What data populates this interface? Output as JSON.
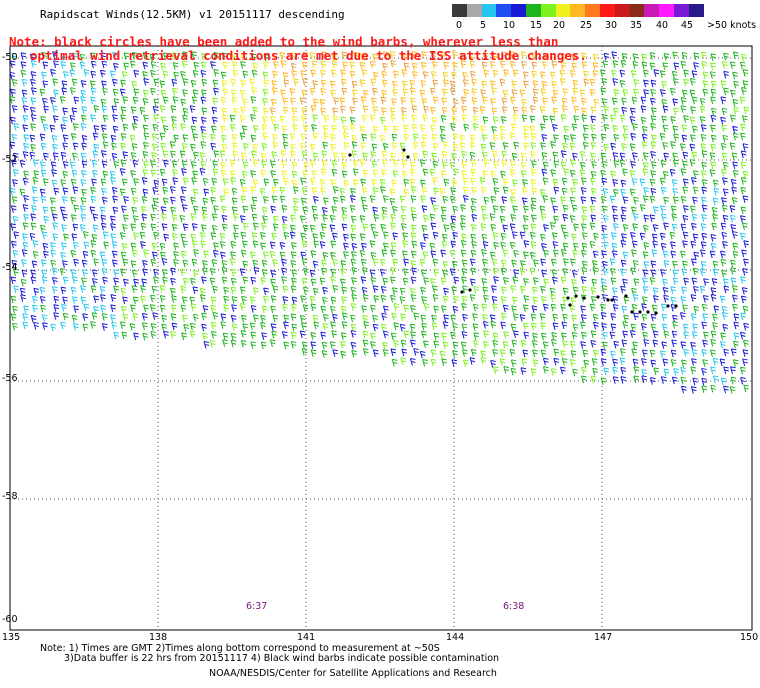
{
  "title": "Rapidscat Winds(12.5KM) v1 20151117 descending",
  "note_lines": [
    "Note: black circles have been added to the wind barbs, wherever less than",
    "optimal wind retrieval conditions are met due to the ISS attitude changes."
  ],
  "colorbar": {
    "colors": [
      "#3a3a3a",
      "#a8a8a8",
      "#26c6f0",
      "#1f4ff0",
      "#1a1ad6",
      "#1fb31f",
      "#7df21f",
      "#f0f01f",
      "#ffb81f",
      "#ff7a1f",
      "#ff1a1a",
      "#c81a1a",
      "#8a2a1a",
      "#c81ab4",
      "#ff1aff",
      "#7a1ad6",
      "#2a1a8a"
    ],
    "labels": [
      "0",
      "5",
      "10",
      "15",
      "20",
      "25",
      "30",
      "35",
      "40",
      "45",
      ">50 knots"
    ]
  },
  "map": {
    "lat_labels": [
      "-50",
      "-52",
      "-54",
      "-56",
      "-58",
      "-60"
    ],
    "lon_labels": [
      "135",
      "138",
      "141",
      "144",
      "147",
      "150"
    ],
    "time_labels": [
      "6:37",
      "6:38"
    ]
  },
  "footer": {
    "line1": "Note: 1) Times are GMT 2)Times along bottom correspond to measurement at ~50S",
    "line2": "3)Data buffer is 22 hrs from 20151117 4) Black wind barbs indicate possible contamination",
    "credit": "NOAA/NESDIS/Center for Satellite Applications and Research"
  }
}
